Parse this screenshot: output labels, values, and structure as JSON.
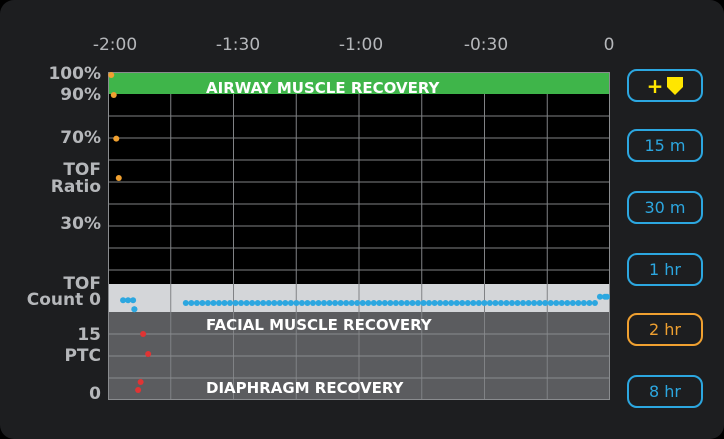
{
  "time_axis": {
    "ticks": [
      "-2:00",
      "-1:30",
      "-1:00",
      "-0:30",
      "0"
    ]
  },
  "y_axis": {
    "labels": [
      "100%",
      "90%",
      "70%",
      "TOF",
      "Ratio",
      "30%",
      "TOF",
      "Count 0",
      "15",
      "PTC",
      "0"
    ]
  },
  "bands": {
    "airway": "AIRWAY MUSCLE RECOVERY",
    "facial": "FACIAL MUSCLE RECOVERY",
    "diaphragm": "DIAPHRAGM RECOVERY"
  },
  "colors": {
    "airway_band": "#3fb54a",
    "count_band": "#d4d6d9",
    "ptc_band": "#5b5c5f",
    "tof_ratio_points": "#f0a030",
    "tof_count_points": "#2ca7e0",
    "ptc_points": "#e03434",
    "button_border": "#2ca7e0",
    "selected_button": "#f0a030",
    "marker_icon": "#ffe600"
  },
  "buttons": {
    "marker": "+",
    "marker_icon": "shield-down-icon",
    "ranges": [
      {
        "label": "15 m",
        "selected": false
      },
      {
        "label": "30 m",
        "selected": false
      },
      {
        "label": "1 hr",
        "selected": false
      },
      {
        "label": "2 hr",
        "selected": true
      },
      {
        "label": "8 hr",
        "selected": false
      }
    ]
  },
  "chart_data": {
    "type": "scatter",
    "x_unit": "minutes",
    "xlim": [
      -2,
      0
    ],
    "tof_ratio_pct": [
      {
        "x": -1.995,
        "y": 100
      },
      {
        "x": -1.985,
        "y": 90
      },
      {
        "x": -1.975,
        "y": 70
      },
      {
        "x": -1.965,
        "y": 52
      }
    ],
    "tof_count_dots": [
      {
        "x_from": -1.94,
        "x_to": -1.9,
        "level": 0.2
      },
      {
        "x_from": -1.895,
        "x_to": -1.895,
        "level": -0.45
      },
      {
        "x_from": -1.69,
        "x_to": -0.06,
        "level": 0
      },
      {
        "x_from": -0.04,
        "x_to": 0.0,
        "level": 0.45
      }
    ],
    "ptc": [
      {
        "x": -1.86,
        "y": 15
      },
      {
        "x": -1.84,
        "y": 10
      },
      {
        "x": -1.88,
        "y": 1
      },
      {
        "x": -1.87,
        "y": 3
      }
    ]
  }
}
